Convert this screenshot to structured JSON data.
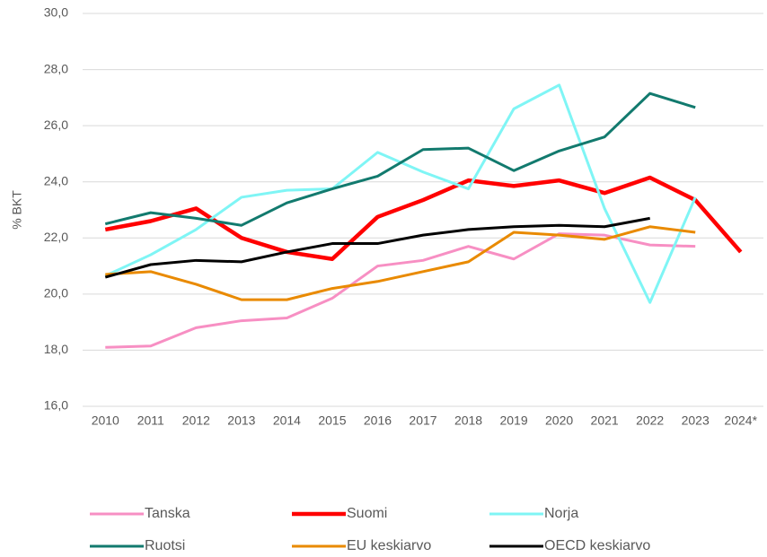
{
  "chart_data": {
    "type": "line",
    "y_label": "% BKT",
    "categories": [
      "2010",
      "2011",
      "2012",
      "2013",
      "2014",
      "2015",
      "2016",
      "2017",
      "2018",
      "2019",
      "2020",
      "2021",
      "2022",
      "2023",
      "2024*"
    ],
    "ylim": [
      16,
      30
    ],
    "yticks": [
      {
        "value": 16,
        "label": "16,0"
      },
      {
        "value": 18,
        "label": "18,0"
      },
      {
        "value": 20,
        "label": "20,0"
      },
      {
        "value": 22,
        "label": "22,0"
      },
      {
        "value": 24,
        "label": "24,0"
      },
      {
        "value": 26,
        "label": "26,0"
      },
      {
        "value": 28,
        "label": "28,0"
      },
      {
        "value": 30,
        "label": "30,0"
      }
    ],
    "grid": true,
    "legend": "bottom",
    "series": [
      {
        "name": "Tanska",
        "color": "#f78fc3",
        "values": [
          18.1,
          18.15,
          18.8,
          19.05,
          19.15,
          19.85,
          21.0,
          21.2,
          21.7,
          21.25,
          22.15,
          22.1,
          21.75,
          21.7,
          null
        ]
      },
      {
        "name": "Suomi",
        "color": "#ff0000",
        "values": [
          22.3,
          22.6,
          23.05,
          22.0,
          21.5,
          21.25,
          22.75,
          23.35,
          24.05,
          23.85,
          24.05,
          23.6,
          24.15,
          23.35,
          21.5
        ]
      },
      {
        "name": "Norja",
        "color": "#7ff5f5",
        "values": [
          20.65,
          21.4,
          22.3,
          23.45,
          23.7,
          23.75,
          25.05,
          24.35,
          23.75,
          26.6,
          27.45,
          23.05,
          19.7,
          23.45,
          null
        ]
      },
      {
        "name": "Ruotsi",
        "color": "#127a6e",
        "values": [
          22.5,
          22.9,
          22.7,
          22.45,
          23.25,
          23.75,
          24.2,
          25.15,
          25.2,
          24.4,
          25.1,
          25.6,
          27.15,
          26.65,
          null
        ]
      },
      {
        "name": "EU keskiarvo",
        "color": "#e98a00",
        "values": [
          20.7,
          20.8,
          20.35,
          19.8,
          19.8,
          20.2,
          20.45,
          20.8,
          21.15,
          22.2,
          22.1,
          21.95,
          22.4,
          22.2,
          null
        ]
      },
      {
        "name": "OECD keskiarvo",
        "color": "#000000",
        "values": [
          20.6,
          21.05,
          21.2,
          21.15,
          21.5,
          21.8,
          21.8,
          22.1,
          22.3,
          22.4,
          22.45,
          22.4,
          22.7,
          null,
          null
        ]
      }
    ]
  }
}
